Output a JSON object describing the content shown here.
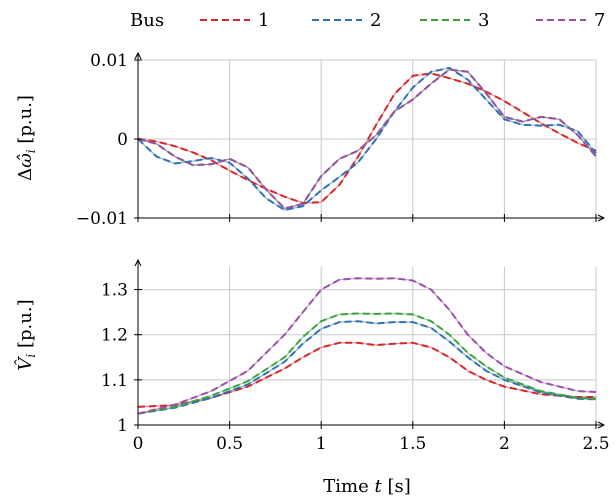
{
  "legend": {
    "title": "Bus",
    "items": [
      {
        "label": "1",
        "color": "#d62728"
      },
      {
        "label": "2",
        "color": "#2e72b5"
      },
      {
        "label": "3",
        "color": "#3ca23c"
      },
      {
        "label": "7",
        "color": "#9b4fa8"
      }
    ],
    "placement": "top"
  },
  "xlabel": "Time t [s]",
  "chart_data": [
    {
      "type": "line",
      "ylabel": "Δω̂_i [p.u.]",
      "xlim": [
        0,
        2.5
      ],
      "ylim": [
        -0.01,
        0.01
      ],
      "yticks": [
        -0.01,
        0,
        0.01
      ],
      "yticklabels": [
        "−0.01",
        "0",
        "0.01"
      ],
      "xticks": [
        0,
        0.5,
        1,
        1.5,
        2,
        2.5
      ],
      "grid": true,
      "series": [
        {
          "name": "1",
          "color": "#d62728",
          "x": [
            0,
            0.1,
            0.2,
            0.3,
            0.4,
            0.5,
            0.6,
            0.7,
            0.8,
            0.9,
            1.0,
            1.1,
            1.2,
            1.3,
            1.4,
            1.5,
            1.6,
            1.7,
            1.8,
            1.9,
            2.0,
            2.1,
            2.2,
            2.3,
            2.4,
            2.5
          ],
          "y": [
            0,
            -0.0003,
            -0.0009,
            -0.0017,
            -0.0027,
            -0.004,
            -0.0052,
            -0.0063,
            -0.0073,
            -0.0081,
            -0.008,
            -0.0058,
            -0.0023,
            0.0018,
            0.0057,
            0.008,
            0.0083,
            0.0077,
            0.007,
            0.006,
            0.0048,
            0.0034,
            0.002,
            0.0007,
            -0.0005,
            -0.0015
          ]
        },
        {
          "name": "2",
          "color": "#2e72b5",
          "x": [
            0,
            0.1,
            0.2,
            0.3,
            0.4,
            0.5,
            0.6,
            0.7,
            0.8,
            0.9,
            1.0,
            1.1,
            1.2,
            1.3,
            1.4,
            1.5,
            1.6,
            1.7,
            1.8,
            1.9,
            2.0,
            2.1,
            2.2,
            2.3,
            2.4,
            2.5
          ],
          "y": [
            0,
            -0.0022,
            -0.0031,
            -0.0028,
            -0.0024,
            -0.003,
            -0.005,
            -0.0075,
            -0.009,
            -0.0085,
            -0.0065,
            -0.0048,
            -0.003,
            0.0,
            0.0035,
            0.0065,
            0.0085,
            0.009,
            0.0075,
            0.005,
            0.0025,
            0.0018,
            0.0017,
            0.0018,
            0.001,
            -0.0018
          ]
        },
        {
          "name": "3",
          "color": "#3ca23c",
          "x": [
            0,
            0.1,
            0.2,
            0.3,
            0.4,
            0.5,
            0.6,
            0.7,
            0.8,
            0.9,
            1.0,
            1.1,
            1.2,
            1.3,
            1.4,
            1.5,
            1.6,
            1.7,
            1.8,
            1.9,
            2.0,
            2.1,
            2.2,
            2.3,
            2.4,
            2.5
          ],
          "y": [
            0,
            -0.0006,
            -0.0022,
            -0.0033,
            -0.0032,
            -0.0025,
            -0.0036,
            -0.0064,
            -0.0088,
            -0.0082,
            -0.0047,
            -0.0025,
            -0.0015,
            0.0005,
            0.0035,
            0.005,
            0.007,
            0.0088,
            0.0085,
            0.0058,
            0.0028,
            0.0022,
            0.0028,
            0.0025,
            0.0005,
            -0.0022
          ]
        },
        {
          "name": "7",
          "color": "#9b4fa8",
          "x": [
            0,
            0.1,
            0.2,
            0.3,
            0.4,
            0.5,
            0.6,
            0.7,
            0.8,
            0.9,
            1.0,
            1.1,
            1.2,
            1.3,
            1.4,
            1.5,
            1.6,
            1.7,
            1.8,
            1.9,
            2.0,
            2.1,
            2.2,
            2.3,
            2.4,
            2.5
          ],
          "y": [
            0,
            -0.0006,
            -0.0022,
            -0.0033,
            -0.0032,
            -0.0025,
            -0.0036,
            -0.0064,
            -0.0088,
            -0.0082,
            -0.0047,
            -0.0025,
            -0.0015,
            0.0005,
            0.0035,
            0.005,
            0.007,
            0.0088,
            0.0085,
            0.0058,
            0.0028,
            0.0022,
            0.0028,
            0.0025,
            0.0005,
            -0.0022
          ]
        }
      ]
    },
    {
      "type": "line",
      "ylabel": "V̂_i [p.u.]",
      "xlim": [
        0,
        2.5
      ],
      "ylim": [
        1.0,
        1.35
      ],
      "yticks": [
        1,
        1.1,
        1.2,
        1.3
      ],
      "yticklabels": [
        "1",
        "1.1",
        "1.2",
        "1.3"
      ],
      "xticks": [
        0,
        0.5,
        1,
        1.5,
        2,
        2.5
      ],
      "xticklabels": [
        "0",
        "0.5",
        "1",
        "1.5",
        "2",
        "2.5"
      ],
      "grid": true,
      "series": [
        {
          "name": "1",
          "color": "#d62728",
          "x": [
            0,
            0.2,
            0.4,
            0.6,
            0.8,
            0.9,
            1.0,
            1.1,
            1.2,
            1.3,
            1.4,
            1.5,
            1.6,
            1.7,
            1.8,
            1.9,
            2.0,
            2.2,
            2.4,
            2.5
          ],
          "y": [
            1.04,
            1.044,
            1.06,
            1.085,
            1.125,
            1.15,
            1.172,
            1.182,
            1.182,
            1.177,
            1.18,
            1.182,
            1.172,
            1.15,
            1.12,
            1.1,
            1.085,
            1.068,
            1.062,
            1.062
          ]
        },
        {
          "name": "2",
          "color": "#2e72b5",
          "x": [
            0,
            0.2,
            0.4,
            0.6,
            0.8,
            0.9,
            1.0,
            1.1,
            1.2,
            1.3,
            1.4,
            1.5,
            1.6,
            1.7,
            1.8,
            1.9,
            2.0,
            2.2,
            2.4,
            2.5
          ],
          "y": [
            1.025,
            1.038,
            1.06,
            1.09,
            1.14,
            1.18,
            1.213,
            1.228,
            1.23,
            1.225,
            1.228,
            1.228,
            1.215,
            1.185,
            1.15,
            1.12,
            1.1,
            1.072,
            1.058,
            1.057
          ]
        },
        {
          "name": "3",
          "color": "#3ca23c",
          "x": [
            0,
            0.2,
            0.4,
            0.6,
            0.8,
            0.9,
            1.0,
            1.1,
            1.2,
            1.3,
            1.4,
            1.5,
            1.6,
            1.7,
            1.8,
            1.9,
            2.0,
            2.2,
            2.4,
            2.5
          ],
          "y": [
            1.025,
            1.04,
            1.065,
            1.097,
            1.15,
            1.195,
            1.23,
            1.245,
            1.247,
            1.246,
            1.247,
            1.245,
            1.23,
            1.2,
            1.16,
            1.13,
            1.105,
            1.075,
            1.06,
            1.058
          ]
        },
        {
          "name": "7",
          "color": "#9b4fa8",
          "x": [
            0,
            0.2,
            0.4,
            0.6,
            0.8,
            0.9,
            1.0,
            1.1,
            1.2,
            1.3,
            1.4,
            1.5,
            1.6,
            1.7,
            1.8,
            1.9,
            2.0,
            2.2,
            2.4,
            2.5
          ],
          "y": [
            1.025,
            1.045,
            1.075,
            1.12,
            1.2,
            1.25,
            1.3,
            1.322,
            1.325,
            1.324,
            1.325,
            1.32,
            1.3,
            1.255,
            1.2,
            1.16,
            1.13,
            1.095,
            1.075,
            1.073
          ]
        }
      ]
    }
  ]
}
